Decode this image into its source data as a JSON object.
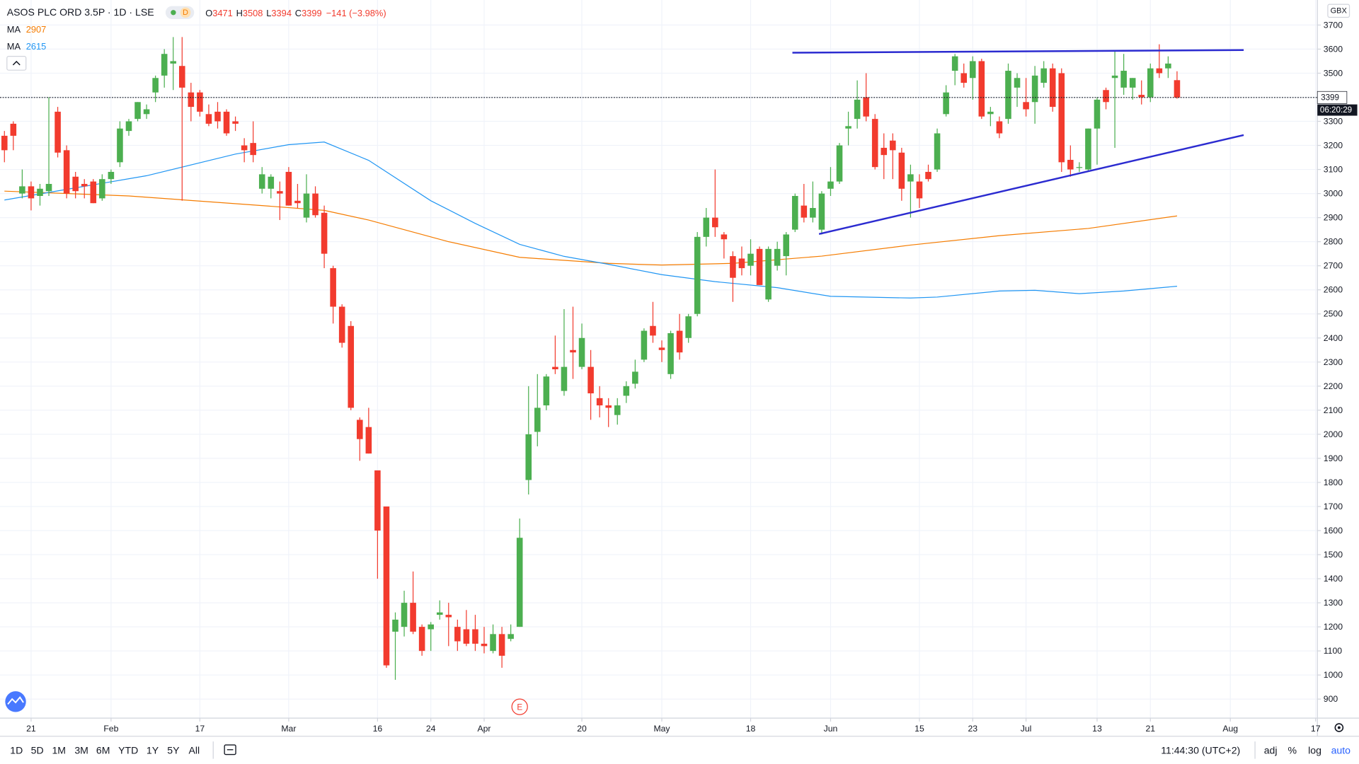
{
  "chart_data": {
    "type": "candlestick",
    "title": "ASOS PLC ORD 3.5P · 1D · LSE",
    "interval_badge": "D",
    "ohlc_labels": [
      "O",
      "H",
      "L",
      "C"
    ],
    "change_label": "−141 (−3.98%)",
    "currency": "GBX",
    "countdown": "06:20:29",
    "up_color": "#4caf50",
    "down_color": "#f23b2e",
    "open": [
      3240,
      3290,
      3000,
      3030,
      2990,
      3010,
      3340,
      3180,
      3070,
      3040,
      3050,
      2980,
      3060,
      3130,
      3260,
      3310,
      3330,
      3420,
      3490,
      3540,
      3530,
      3420,
      3420,
      3330,
      3340,
      3340,
      3300,
      3200,
      3210,
      3020,
      3020,
      3010,
      3090,
      2970,
      2900,
      3000,
      2920,
      2690,
      2530,
      2450,
      2060,
      2030,
      1850,
      1700,
      1180,
      1200,
      1300,
      1200,
      1190,
      1250,
      1250,
      1200,
      1190,
      1190,
      1130,
      1100,
      1170,
      1150,
      1200,
      1810,
      2010,
      2120,
      2280,
      2180,
      2350,
      2280,
      2280,
      2150,
      2120,
      2080,
      2160,
      2210,
      2310,
      2450,
      2360,
      2250,
      2430,
      2400,
      2500,
      2820,
      2900,
      2830,
      2740,
      2730,
      2700,
      2770,
      2560,
      2700,
      2740,
      2850,
      2950,
      2900,
      2850,
      3020,
      3050,
      3270,
      3310,
      3400,
      3310,
      3190,
      3220,
      3170,
      3050,
      3050,
      3090,
      3100,
      3330,
      3510,
      3500,
      3480,
      3550,
      3330,
      3300,
      3310,
      3440,
      3380,
      3380,
      3460,
      3520,
      3500,
      3140,
      3110,
      3100,
      3270,
      3430,
      3480,
      3440,
      3440,
      3410,
      3400,
      3520,
      3520,
      3471
    ],
    "high": [
      3260,
      3300,
      3100,
      3050,
      3040,
      3400,
      3360,
      3200,
      3090,
      3060,
      3060,
      3080,
      3100,
      3300,
      3310,
      3380,
      3370,
      3490,
      3600,
      3650,
      3650,
      3460,
      3430,
      3370,
      3380,
      3350,
      3320,
      3230,
      3300,
      3110,
      3080,
      3050,
      3110,
      3040,
      3080,
      3030,
      2950,
      2700,
      2540,
      2470,
      2070,
      2110,
      1850,
      1700,
      1260,
      1350,
      1430,
      1210,
      1220,
      1310,
      1300,
      1230,
      1270,
      1250,
      1200,
      1210,
      1200,
      1210,
      1650,
      2200,
      2250,
      2250,
      2410,
      2520,
      2530,
      2460,
      2350,
      2200,
      2150,
      2150,
      2220,
      2310,
      2440,
      2550,
      2390,
      2430,
      2500,
      2500,
      2840,
      2940,
      3100,
      2840,
      2760,
      2780,
      2810,
      2780,
      2780,
      2800,
      2840,
      3000,
      3040,
      3050,
      3010,
      3110,
      3210,
      3340,
      3470,
      3500,
      3330,
      3250,
      3250,
      3190,
      3120,
      3080,
      3120,
      3270,
      3450,
      3580,
      3540,
      3570,
      3560,
      3360,
      3320,
      3540,
      3500,
      3480,
      3530,
      3550,
      3540,
      3520,
      3200,
      3130,
      3270,
      3400,
      3440,
      3590,
      3580,
      3480,
      3470,
      3540,
      3620,
      3570,
      3508
    ],
    "low": [
      3130,
      3180,
      2980,
      2930,
      2950,
      2990,
      3150,
      2980,
      2980,
      2980,
      2960,
      2970,
      3040,
      3110,
      3240,
      3300,
      3310,
      3380,
      3440,
      3430,
      2970,
      3300,
      3320,
      3280,
      3270,
      3240,
      3260,
      3130,
      3130,
      3000,
      2980,
      2890,
      2950,
      2940,
      2880,
      2900,
      2690,
      2460,
      2360,
      2100,
      1890,
      1920,
      1400,
      1030,
      980,
      1160,
      1170,
      1080,
      1100,
      1230,
      1120,
      1100,
      1120,
      1100,
      1090,
      1090,
      1030,
      1140,
      1200,
      1750,
      1950,
      2100,
      2250,
      2160,
      2230,
      2270,
      2060,
      2070,
      2030,
      2040,
      2130,
      2190,
      2300,
      2380,
      2300,
      2230,
      2310,
      2380,
      2490,
      2780,
      2820,
      2730,
      2550,
      2660,
      2660,
      2620,
      2550,
      2680,
      2660,
      2840,
      2880,
      2880,
      2830,
      2990,
      3040,
      3200,
      3270,
      3300,
      3100,
      3060,
      3060,
      2970,
      2900,
      2940,
      3050,
      3090,
      3320,
      3450,
      3440,
      3390,
      3310,
      3280,
      3230,
      3290,
      3360,
      3320,
      3290,
      3440,
      3340,
      3090,
      3070,
      3090,
      3090,
      3120,
      3350,
      3190,
      3410,
      3390,
      3370,
      3380,
      3480,
      3480,
      3394
    ],
    "close": [
      3180,
      3240,
      3030,
      2980,
      3020,
      3040,
      3170,
      3000,
      3010,
      3030,
      2960,
      3060,
      3090,
      3270,
      3300,
      3380,
      3350,
      3480,
      3580,
      3550,
      3440,
      3360,
      3340,
      3290,
      3300,
      3250,
      3290,
      3180,
      3160,
      3080,
      3070,
      3000,
      2950,
      2960,
      3000,
      2910,
      2750,
      2530,
      2380,
      2110,
      1980,
      1920,
      1600,
      1040,
      1230,
      1300,
      1180,
      1100,
      1210,
      1260,
      1240,
      1140,
      1130,
      1130,
      1120,
      1170,
      1080,
      1170,
      1570,
      2000,
      2110,
      2240,
      2270,
      2280,
      2340,
      2400,
      2170,
      2120,
      2110,
      2120,
      2200,
      2260,
      2430,
      2410,
      2350,
      2420,
      2340,
      2490,
      2820,
      2900,
      2860,
      2810,
      2650,
      2690,
      2750,
      2620,
      2770,
      2770,
      2830,
      2990,
      2900,
      2940,
      3000,
      3050,
      3200,
      3280,
      3390,
      3320,
      3110,
      3160,
      3180,
      3020,
      3080,
      2980,
      3060,
      3250,
      3420,
      3570,
      3460,
      3550,
      3320,
      3340,
      3250,
      3510,
      3480,
      3350,
      3490,
      3520,
      3360,
      3130,
      3100,
      3110,
      3270,
      3390,
      3380,
      3490,
      3510,
      3480,
      3400,
      3520,
      3500,
      3540,
      3399
    ],
    "xlim": [
      -0.5,
      147.8
    ],
    "xticks": [
      {
        "value": 3,
        "label": "21"
      },
      {
        "value": 12,
        "label": "Feb"
      },
      {
        "value": 22,
        "label": "17"
      },
      {
        "value": 32,
        "label": "Mar"
      },
      {
        "value": 42,
        "label": "16"
      },
      {
        "value": 48,
        "label": "24"
      },
      {
        "value": 54,
        "label": "Apr"
      },
      {
        "value": 65,
        "label": "20"
      },
      {
        "value": 74,
        "label": "May"
      },
      {
        "value": 84,
        "label": "18"
      },
      {
        "value": 93,
        "label": "Jun"
      },
      {
        "value": 103,
        "label": "15"
      },
      {
        "value": 109,
        "label": "23"
      },
      {
        "value": 115,
        "label": "Jul"
      },
      {
        "value": 123,
        "label": "13"
      },
      {
        "value": 129,
        "label": "21"
      },
      {
        "value": 138,
        "label": "Aug"
      },
      {
        "value": 147.6,
        "label": "17"
      }
    ],
    "ylim": [
      821,
      3804
    ],
    "yticks": [
      900,
      1000,
      1100,
      1200,
      1300,
      1400,
      1500,
      1600,
      1700,
      1800,
      1900,
      2000,
      2100,
      2200,
      2300,
      2400,
      2500,
      2600,
      2700,
      2800,
      2900,
      3000,
      3100,
      3200,
      3300,
      3400,
      3500,
      3600,
      3700
    ],
    "grid": true,
    "indicators": [
      {
        "name": "MA",
        "value": 2907,
        "color": "#f57c00",
        "x": [
          0,
          14,
          29,
          36,
          41,
          50,
          58,
          68,
          74,
          82,
          92,
          102,
          112,
          122,
          132
        ],
        "values": [
          3010,
          2990,
          2950,
          2930,
          2890,
          2800,
          2735,
          2710,
          2703,
          2710,
          2740,
          2786,
          2825,
          2855,
          2907
        ]
      },
      {
        "name": "MA",
        "value": 2615,
        "color": "#2196f3",
        "x": [
          0,
          9,
          16,
          26,
          32,
          36,
          41,
          48,
          53,
          58,
          63,
          68,
          74,
          80,
          87,
          93,
          102,
          105,
          112,
          116,
          121,
          126,
          132
        ],
        "values": [
          2973,
          3030,
          3074,
          3164,
          3203,
          3214,
          3138,
          2970,
          2876,
          2789,
          2739,
          2706,
          2663,
          2634,
          2609,
          2573,
          2566,
          2570,
          2595,
          2598,
          2584,
          2595,
          2615
        ]
      }
    ],
    "trendlines": [
      {
        "color": "#2b2bd0",
        "x": [
          88.7,
          139.5
        ],
        "values": [
          3585,
          3596
        ]
      },
      {
        "color": "#2b2bd0",
        "x": [
          91.7,
          139.5
        ],
        "values": [
          2832,
          3243
        ]
      }
    ],
    "events": [
      {
        "label": "E",
        "x": 58
      }
    ]
  },
  "toolbar": {
    "ranges": [
      "1D",
      "5D",
      "1M",
      "3M",
      "6M",
      "YTD",
      "1Y",
      "5Y",
      "All"
    ],
    "time": "11:44:30 (UTC+2)",
    "options": [
      "adj",
      "%",
      "log",
      "auto"
    ]
  }
}
